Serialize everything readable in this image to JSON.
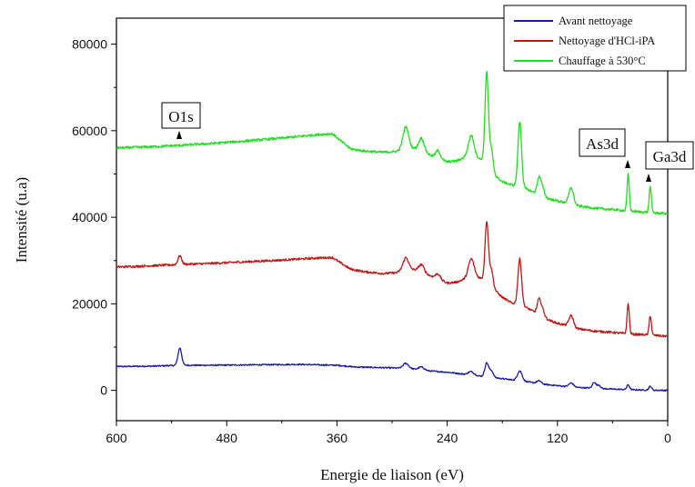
{
  "chart_data": {
    "type": "line",
    "xlabel": "Energie de liaison (eV)",
    "ylabel": "Intensité  (u.a)",
    "xlim": [
      600,
      0
    ],
    "ylim": [
      -7000,
      86000
    ],
    "x_ticks": [
      600,
      480,
      360,
      240,
      120,
      0
    ],
    "y_ticks": [
      0,
      20000,
      40000,
      60000,
      80000
    ],
    "x_tick_labels": [
      "600",
      "480",
      "360",
      "240",
      "120",
      "0"
    ],
    "y_tick_labels": [
      "0",
      "20000",
      "40000",
      "60000",
      "80000"
    ],
    "legend_position": "top-right",
    "series": [
      {
        "name": "Avant nettoyage",
        "color": "#1a1aa8",
        "base": [
          [
            600,
            5500
          ],
          [
            560,
            5600
          ],
          [
            531,
            5800
          ],
          [
            500,
            5800
          ],
          [
            450,
            5900
          ],
          [
            400,
            6000
          ],
          [
            360,
            5800
          ],
          [
            340,
            5400
          ],
          [
            320,
            5300
          ],
          [
            300,
            5200
          ],
          [
            280,
            5000
          ],
          [
            260,
            4500
          ],
          [
            240,
            4200
          ],
          [
            220,
            3700
          ],
          [
            200,
            3200
          ],
          [
            190,
            3000
          ],
          [
            180,
            2700
          ],
          [
            160,
            2200
          ],
          [
            150,
            1900
          ],
          [
            140,
            1500
          ],
          [
            120,
            1100
          ],
          [
            100,
            700
          ],
          [
            80,
            500
          ],
          [
            60,
            300
          ],
          [
            40,
            150
          ],
          [
            20,
            50
          ],
          [
            0,
            0
          ]
        ],
        "peaks": [
          [
            531,
            4000,
            2.0
          ],
          [
            285,
            1200,
            3.0
          ],
          [
            268,
            700,
            3.0
          ],
          [
            214,
            800,
            3.0
          ],
          [
            197,
            3200,
            2.0
          ],
          [
            192,
            1500,
            2.0
          ],
          [
            161,
            2300,
            2.5
          ],
          [
            140,
            700,
            2.5
          ],
          [
            105,
            900,
            2.5
          ],
          [
            80,
            1400,
            1.8
          ],
          [
            75,
            800,
            1.8
          ],
          [
            43,
            1100,
            1.5
          ],
          [
            19,
            900,
            1.5
          ]
        ],
        "noise": 150
      },
      {
        "name": "Nettoyage d'HCl-iPA",
        "color": "#c01818",
        "base": [
          [
            600,
            28500
          ],
          [
            560,
            28800
          ],
          [
            531,
            29100
          ],
          [
            500,
            29300
          ],
          [
            460,
            29700
          ],
          [
            420,
            30100
          ],
          [
            380,
            30600
          ],
          [
            365,
            30700
          ],
          [
            355,
            29300
          ],
          [
            345,
            28000
          ],
          [
            330,
            27400
          ],
          [
            310,
            27000
          ],
          [
            295,
            27200
          ],
          [
            285,
            28100
          ],
          [
            275,
            27800
          ],
          [
            265,
            27000
          ],
          [
            255,
            26200
          ],
          [
            240,
            24800
          ],
          [
            230,
            25000
          ],
          [
            220,
            25800
          ],
          [
            212,
            26800
          ],
          [
            205,
            26000
          ],
          [
            197,
            25500
          ],
          [
            190,
            23500
          ],
          [
            180,
            21500
          ],
          [
            170,
            20200
          ],
          [
            160,
            19800
          ],
          [
            150,
            18700
          ],
          [
            140,
            17500
          ],
          [
            130,
            16300
          ],
          [
            120,
            15500
          ],
          [
            110,
            15000
          ],
          [
            100,
            14300
          ],
          [
            80,
            13700
          ],
          [
            60,
            13400
          ],
          [
            40,
            13000
          ],
          [
            20,
            12800
          ],
          [
            0,
            12500
          ]
        ],
        "peaks": [
          [
            531,
            2000,
            2.0
          ],
          [
            285,
            2600,
            3.0
          ],
          [
            268,
            1800,
            3.0
          ],
          [
            250,
            1200,
            2.5
          ],
          [
            214,
            3800,
            3.0
          ],
          [
            197,
            13500,
            1.8
          ],
          [
            192,
            4000,
            2.0
          ],
          [
            161,
            10500,
            2.0
          ],
          [
            140,
            3500,
            2.0
          ],
          [
            136,
            1500,
            2.0
          ],
          [
            105,
            2600,
            2.5
          ],
          [
            43,
            7000,
            1.2
          ],
          [
            19,
            4500,
            1.2
          ]
        ],
        "noise": 250
      },
      {
        "name": "Chauffage à 530°C",
        "color": "#22dd22",
        "base": [
          [
            600,
            56000
          ],
          [
            560,
            56300
          ],
          [
            531,
            56600
          ],
          [
            500,
            57000
          ],
          [
            460,
            57600
          ],
          [
            420,
            58300
          ],
          [
            380,
            59100
          ],
          [
            365,
            59300
          ],
          [
            355,
            57500
          ],
          [
            345,
            55800
          ],
          [
            330,
            55300
          ],
          [
            310,
            55000
          ],
          [
            295,
            55200
          ],
          [
            285,
            56200
          ],
          [
            275,
            55800
          ],
          [
            265,
            55000
          ],
          [
            255,
            54000
          ],
          [
            240,
            52800
          ],
          [
            230,
            53000
          ],
          [
            220,
            53900
          ],
          [
            212,
            54500
          ],
          [
            205,
            53500
          ],
          [
            197,
            53000
          ],
          [
            190,
            50000
          ],
          [
            180,
            48200
          ],
          [
            170,
            47500
          ],
          [
            160,
            47000
          ],
          [
            150,
            46200
          ],
          [
            140,
            45200
          ],
          [
            130,
            44300
          ],
          [
            120,
            43800
          ],
          [
            110,
            43300
          ],
          [
            100,
            42700
          ],
          [
            80,
            42100
          ],
          [
            60,
            41800
          ],
          [
            40,
            41400
          ],
          [
            20,
            41100
          ],
          [
            0,
            40800
          ]
        ],
        "peaks": [
          [
            285,
            4800,
            3.0
          ],
          [
            268,
            3000,
            3.0
          ],
          [
            250,
            1800,
            2.5
          ],
          [
            214,
            4500,
            3.0
          ],
          [
            197,
            20500,
            1.8
          ],
          [
            192,
            5000,
            2.0
          ],
          [
            161,
            15000,
            2.0
          ],
          [
            140,
            4000,
            2.0
          ],
          [
            136,
            1800,
            2.0
          ],
          [
            105,
            3800,
            2.5
          ],
          [
            43,
            8500,
            1.2
          ],
          [
            19,
            6000,
            1.2
          ]
        ],
        "noise": 280
      }
    ],
    "annotations": [
      {
        "text": "O1s",
        "x": 531,
        "y": 58000
      },
      {
        "text": "As3d",
        "x": 43,
        "y": 52000
      },
      {
        "text": "Ga3d",
        "x": 19,
        "y": 49000
      }
    ]
  }
}
